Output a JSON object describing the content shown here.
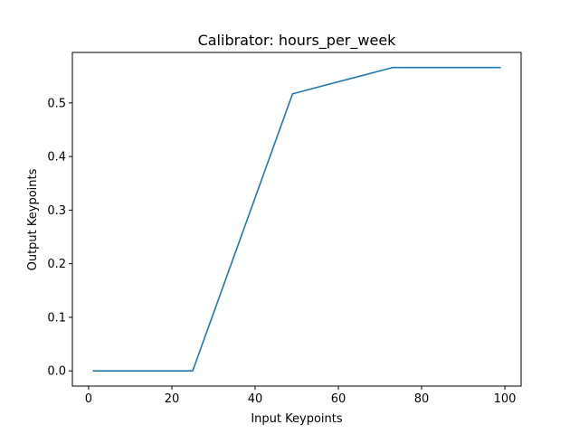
{
  "chart_data": {
    "type": "line",
    "title": "Calibrator: hours_per_week",
    "xlabel": "Input Keypoints",
    "ylabel": "Output Keypoints",
    "xlim": [
      -3.9,
      103.9
    ],
    "ylim": [
      -0.0283,
      0.5942
    ],
    "xticks": [
      0,
      20,
      40,
      60,
      80,
      100
    ],
    "xtick_labels": [
      "0",
      "20",
      "40",
      "60",
      "80",
      "100"
    ],
    "yticks": [
      0.0,
      0.1,
      0.2,
      0.3,
      0.4,
      0.5
    ],
    "ytick_labels": [
      "0.0",
      "0.1",
      "0.2",
      "0.3",
      "0.4",
      "0.5"
    ],
    "grid": false,
    "series": [
      {
        "x": [
          1,
          25,
          49,
          73,
          99
        ],
        "y": [
          0.0,
          0.0,
          0.517,
          0.566,
          0.566
        ],
        "color": "#1f77b4"
      }
    ]
  }
}
